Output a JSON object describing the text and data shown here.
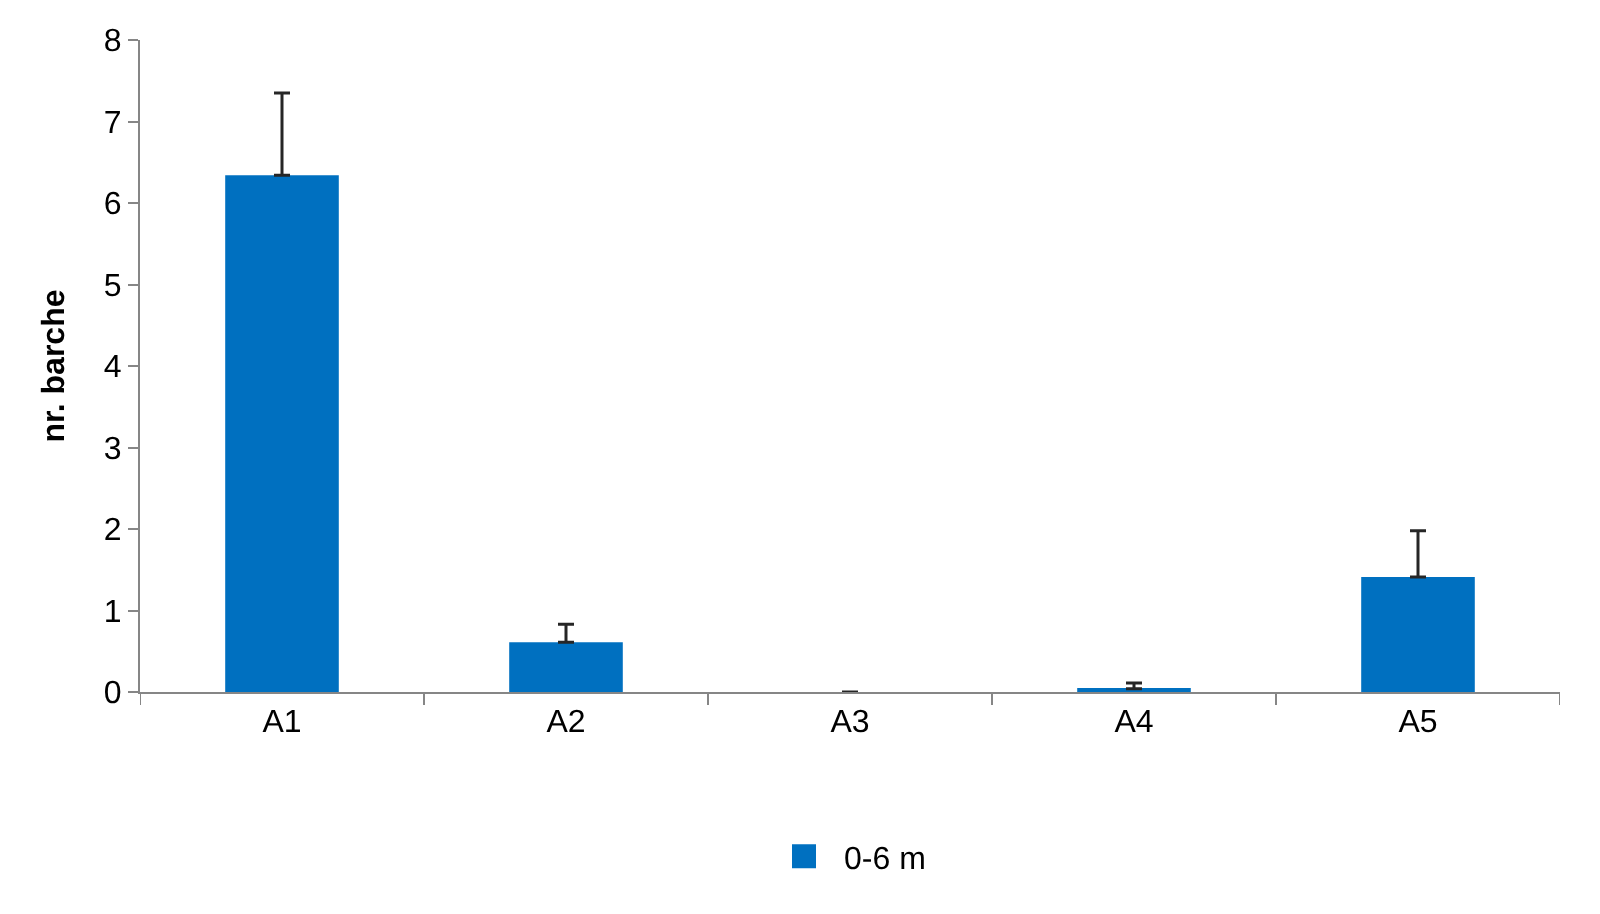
{
  "chart_data": {
    "type": "bar",
    "ylabel": "nr. barche",
    "categories": [
      "A1",
      "A2",
      "A3",
      "A4",
      "A5"
    ],
    "series": [
      {
        "name": "0-6 m",
        "color": "#0070c0",
        "values": [
          6.34,
          0.61,
          0,
          0.04,
          1.41
        ],
        "errors": [
          [
            6.34,
            7.35
          ],
          [
            0.61,
            0.83
          ],
          null,
          [
            0.04,
            0.11
          ],
          [
            1.41,
            1.98
          ]
        ]
      }
    ],
    "ylim": [
      0,
      8
    ],
    "yticks": [
      0,
      1,
      2,
      3,
      4,
      5,
      6,
      7,
      8
    ],
    "legend": "bottom"
  }
}
